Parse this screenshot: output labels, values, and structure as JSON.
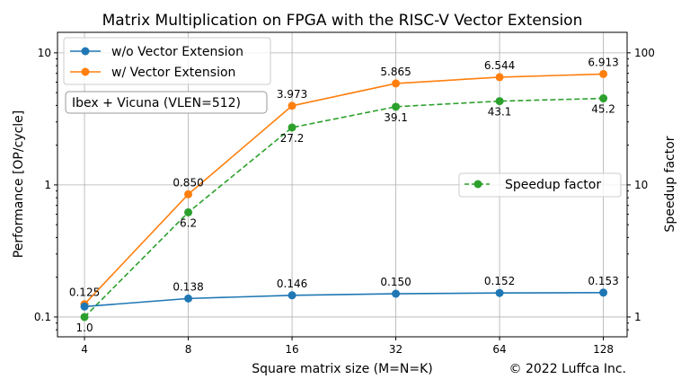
{
  "chart_data": {
    "type": "line",
    "title": "Matrix Multiplication on FPGA with the RISC-V Vector Extension",
    "xlabel": "Square matrix size (M=N=K)",
    "ylabel": "Performance [OP/cycle]",
    "y2label": "Speedup factor",
    "x": [
      4,
      8,
      16,
      32,
      64,
      128
    ],
    "x_tick_labels": [
      "4",
      "8",
      "16",
      "32",
      "64",
      "128"
    ],
    "x_scale": "log2",
    "xlim": [
      3.34,
      150
    ],
    "y_scale": "log",
    "ylim": [
      0.0708,
      14.3
    ],
    "y_tick_labels": [
      "0.1",
      "1",
      "10"
    ],
    "y_ticks": [
      0.1,
      1,
      10
    ],
    "y2_scale": "log",
    "y2lim": [
      0.708,
      143
    ],
    "y2_tick_labels": [
      "1",
      "10",
      "100"
    ],
    "y2_ticks": [
      1,
      10,
      100
    ],
    "grid": true,
    "series": [
      {
        "name": "w/o Vector Extension",
        "axis": "left",
        "color": "#1f77b4",
        "style": "solid",
        "values": [
          0.12,
          0.138,
          0.146,
          0.15,
          0.152,
          0.153
        ],
        "labels": [
          "",
          "0.138",
          "0.146",
          "0.150",
          "0.152",
          "0.153"
        ]
      },
      {
        "name": "w/ Vector Extension",
        "axis": "left",
        "color": "#ff7f0e",
        "style": "solid",
        "values": [
          0.125,
          0.85,
          3.973,
          5.865,
          6.544,
          6.913
        ],
        "labels": [
          "0.125",
          "0.850",
          "3.973",
          "5.865",
          "6.544",
          "6.913"
        ]
      },
      {
        "name": "Speedup factor",
        "axis": "right",
        "color": "#2ca02c",
        "style": "dashed",
        "values": [
          1.0,
          6.2,
          27.2,
          39.1,
          43.1,
          45.2
        ],
        "labels": [
          "1.0",
          "6.2",
          "27.2",
          "39.1",
          "43.1",
          "45.2"
        ]
      }
    ],
    "legend_left": "top-left",
    "legend_right": "center-right",
    "annotation": "Ibex + Vicuna (VLEN=512)",
    "copyright": "© 2022 Luffca Inc."
  }
}
